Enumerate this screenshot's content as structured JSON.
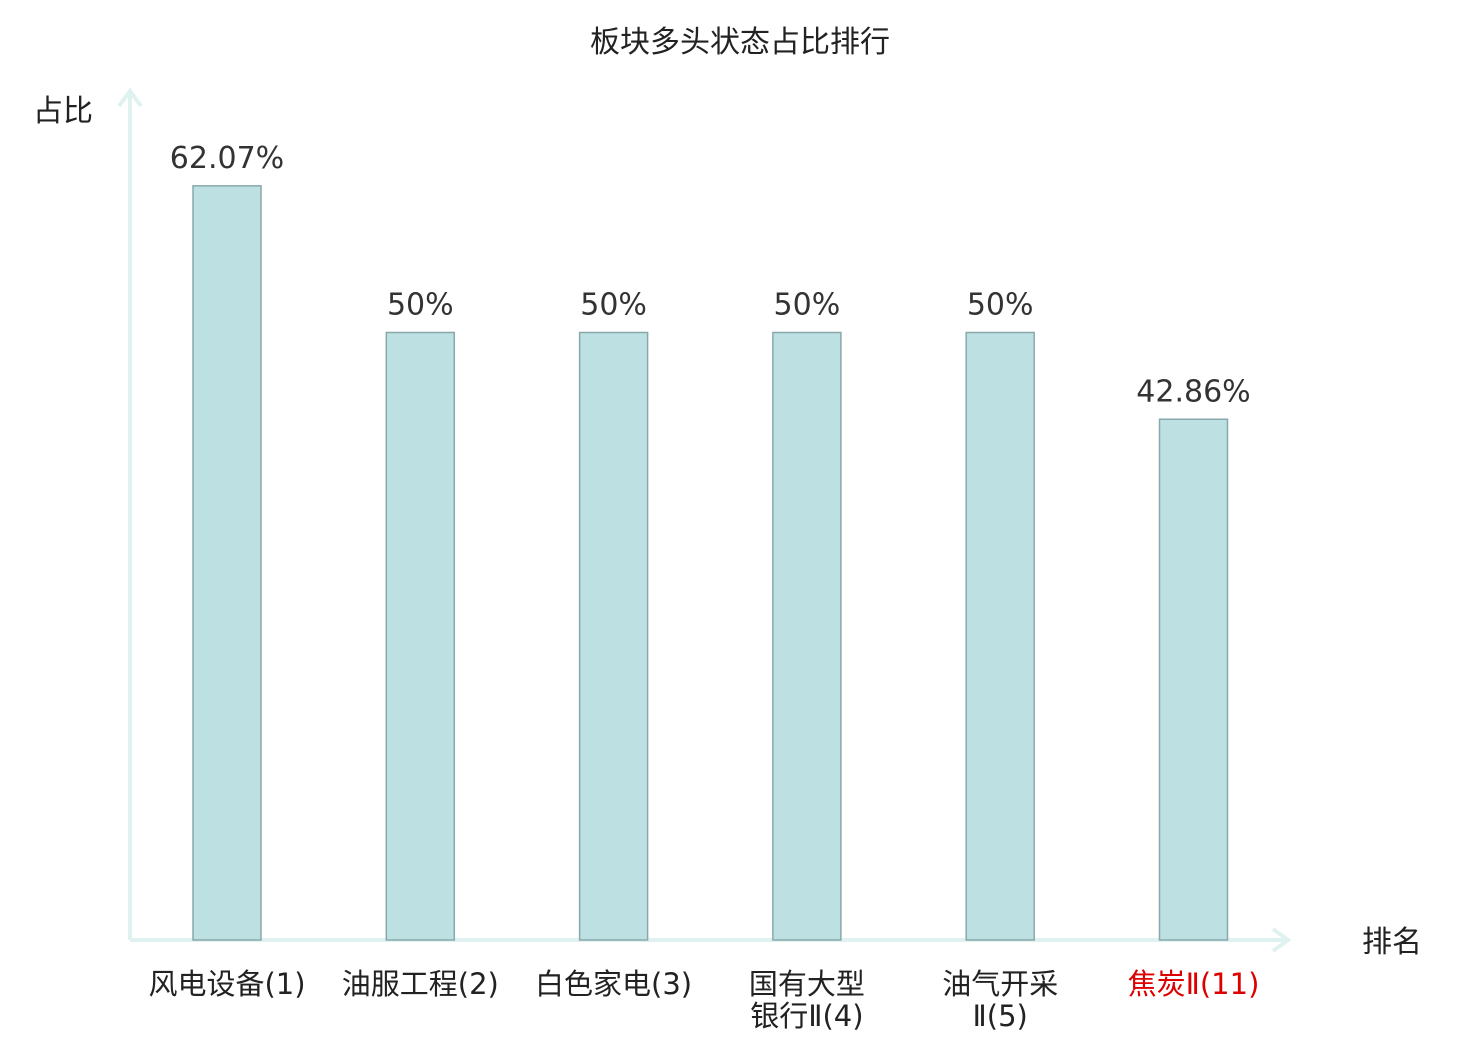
{
  "chart_data": {
    "type": "bar",
    "title": "板块多头状态占比排行",
    "ylabel": "占比",
    "xlabel": "排名",
    "ylim": [
      0,
      70
    ],
    "grid": false,
    "categories": [
      [
        "风电设备(1)"
      ],
      [
        "油服工程(2)"
      ],
      [
        "白色家电(3)"
      ],
      [
        "国有大型",
        "银行Ⅱ(4)"
      ],
      [
        "油气开采",
        "Ⅱ(5)"
      ],
      [
        "焦炭Ⅱ(11)"
      ]
    ],
    "values": [
      62.07,
      50,
      50,
      50,
      50,
      42.86
    ],
    "value_labels": [
      "62.07%",
      "50%",
      "50%",
      "50%",
      "50%",
      "42.86%"
    ],
    "category_colors": [
      "#222222",
      "#222222",
      "#222222",
      "#222222",
      "#222222",
      "#dd0000"
    ],
    "colors": {
      "bar_fill": "#bde0e2",
      "bar_stroke": "#8aa8ab",
      "axis": "#dff2ef",
      "highlight": "#dd0000"
    }
  }
}
